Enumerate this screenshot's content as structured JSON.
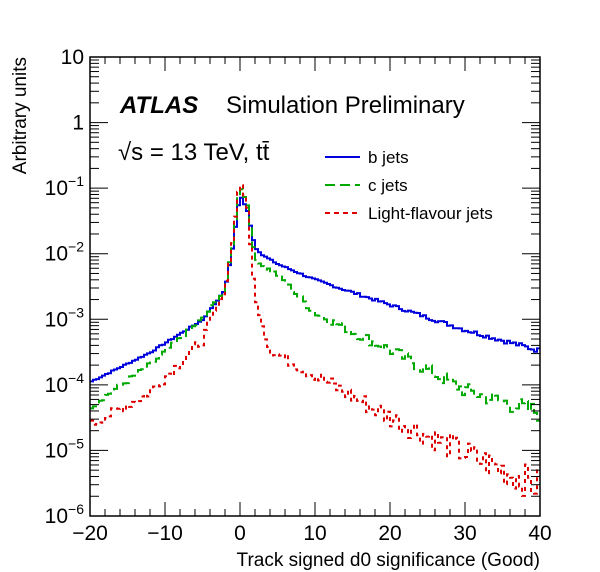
{
  "chart_data": {
    "type": "line",
    "title": "",
    "annotations": {
      "experiment": "ATLAS",
      "status": "Simulation Preliminary",
      "energy": "√s = 13 TeV, tt̄"
    },
    "xlabel": "Track signed d0 significance (Good)",
    "ylabel": "Arbitrary units",
    "xlim": [
      -20,
      40
    ],
    "ylim": [
      1e-06,
      10
    ],
    "yscale": "log",
    "x_ticks": [
      "−20",
      "−10",
      "0",
      "10",
      "20",
      "30",
      "40"
    ],
    "x_tick_values": [
      -20,
      -10,
      0,
      10,
      20,
      30,
      40
    ],
    "y_ticks": [
      {
        "value": 10,
        "base": "10",
        "exp": ""
      },
      {
        "value": 1,
        "base": "1",
        "exp": ""
      },
      {
        "value": 0.1,
        "base": "10",
        "exp": "−1"
      },
      {
        "value": 0.01,
        "base": "10",
        "exp": "−2"
      },
      {
        "value": 0.001,
        "base": "10",
        "exp": "−3"
      },
      {
        "value": 0.0001,
        "base": "10",
        "exp": "−4"
      },
      {
        "value": 1e-05,
        "base": "10",
        "exp": "−5"
      },
      {
        "value": 1e-06,
        "base": "10",
        "exp": "−6"
      }
    ],
    "legend_position": "top-right",
    "series": [
      {
        "name": "b jets",
        "color": "#0000dd",
        "style": "solid",
        "x": [
          -20,
          -12,
          -5,
          -2,
          -1,
          0,
          1,
          2,
          3,
          5,
          10,
          20,
          30,
          40
        ],
        "y": [
          0.00011,
          0.00031,
          0.00098,
          0.0028,
          0.012,
          0.08,
          0.045,
          0.0125,
          0.0095,
          0.007,
          0.004,
          0.00166,
          0.00069,
          0.00033
        ]
      },
      {
        "name": "c jets",
        "color": "#00aa00",
        "style": "dashed",
        "x": [
          -20,
          -12,
          -5,
          -2,
          -1,
          0,
          1,
          2,
          3,
          5,
          10,
          20,
          30,
          40
        ],
        "y": [
          4.6e-05,
          0.0002,
          0.001,
          0.0028,
          0.014,
          0.112,
          0.055,
          0.0085,
          0.0065,
          0.0048,
          0.00126,
          0.00034,
          8.3e-05,
          3.7e-05
        ]
      },
      {
        "name": "Light-flavour jets",
        "color": "#dd0000",
        "style": "dotted",
        "x": [
          -20,
          -12,
          -5,
          -2,
          -1,
          0,
          1,
          2,
          3,
          4,
          10,
          20,
          30,
          40
        ],
        "y": [
          2.4e-05,
          7.6e-05,
          0.00048,
          0.0028,
          0.015,
          0.138,
          0.05,
          0.0022,
          0.0008,
          0.00034,
          0.00014,
          3.2e-05,
          9.1e-06,
          2.8e-06
        ]
      }
    ]
  }
}
